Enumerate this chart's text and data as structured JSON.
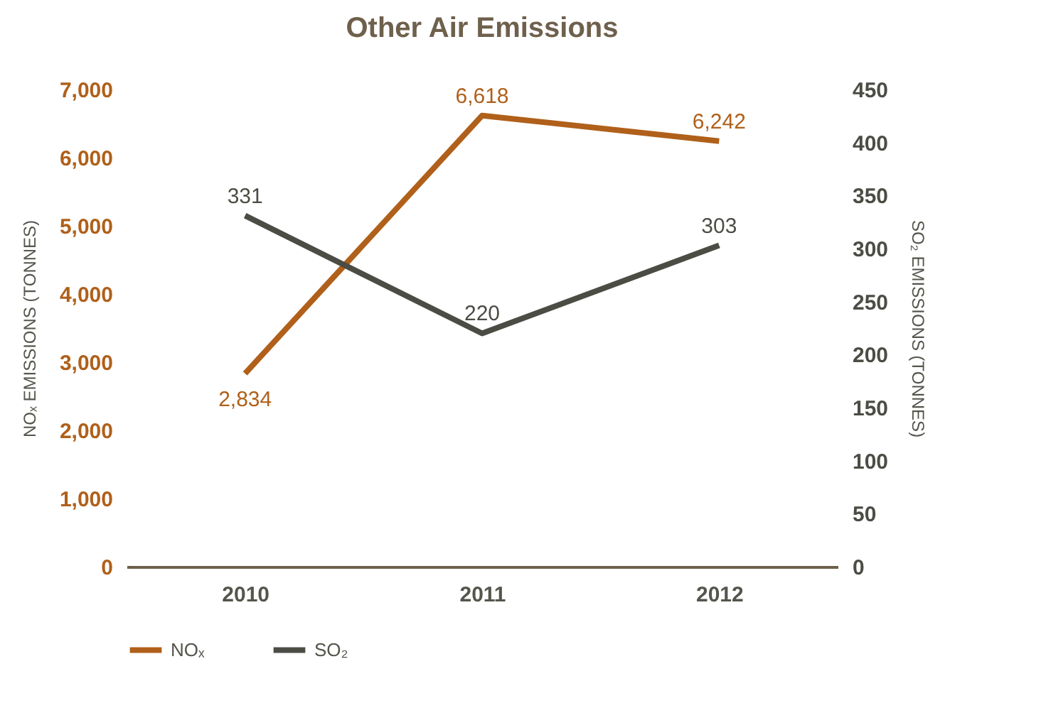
{
  "chart_data": {
    "type": "line",
    "title": "Other Air Emissions",
    "categories": [
      "2010",
      "2011",
      "2012"
    ],
    "ylabel": "NOₓ EMISSIONS (TONNES)",
    "y2label": "SO₂ EMISSIONS (TONNES)",
    "ylim": [
      0,
      7000
    ],
    "yticks": [
      0,
      {
        "value": 1000,
        "label": "1,000"
      },
      {
        "value": 2000,
        "label": "2,000"
      },
      {
        "value": 3000,
        "label": "3,000"
      },
      {
        "value": 4000,
        "label": "4,000"
      },
      {
        "value": 5000,
        "label": "5,000"
      },
      {
        "value": 6000,
        "label": "6,000"
      },
      {
        "value": 7000,
        "label": "7,000"
      }
    ],
    "y2lim": [
      0,
      450
    ],
    "y2ticks": [
      0,
      50,
      100,
      150,
      200,
      250,
      300,
      350,
      400,
      450
    ],
    "series": [
      {
        "name": "NOₓ",
        "color": "#b0601a",
        "values": [
          2834,
          6618,
          6242
        ],
        "value_labels": [
          "2,834",
          "6,618",
          "6,242"
        ]
      },
      {
        "name": "SO₂",
        "color": "#4b4d45",
        "axis": "y2",
        "values": [
          331,
          220,
          303
        ],
        "value_labels": [
          "331",
          "220",
          "303"
        ]
      }
    ],
    "legend": "bottom",
    "grid": false,
    "marker": "none",
    "line_style": "solid"
  }
}
